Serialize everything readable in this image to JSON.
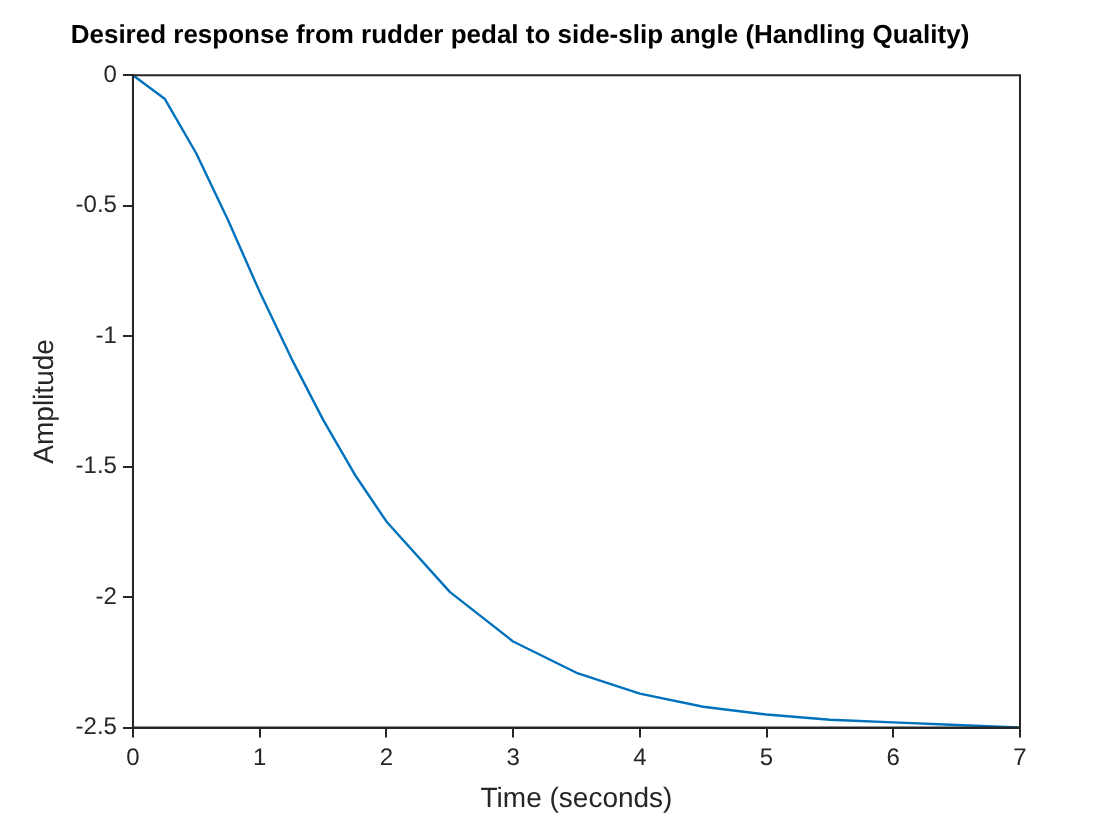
{
  "chart_data": {
    "type": "line",
    "title": "Desired response from rudder pedal to side-slip angle (Handling Quality)",
    "xlabel": "Time (seconds)",
    "ylabel": "Amplitude",
    "x": [
      0,
      0.25,
      0.5,
      0.75,
      1,
      1.25,
      1.5,
      1.75,
      2,
      2.5,
      3,
      3.5,
      4,
      4.5,
      5,
      5.5,
      6,
      6.5,
      7
    ],
    "series": [
      {
        "color": "#0072bd",
        "values": [
          0,
          -0.09,
          -0.3,
          -0.555,
          -0.83,
          -1.085,
          -1.32,
          -1.53,
          -1.71,
          -1.98,
          -2.17,
          -2.29,
          -2.37,
          -2.42,
          -2.45,
          -2.47,
          -2.48,
          -2.49,
          -2.5
        ]
      }
    ],
    "xlim": [
      0,
      7
    ],
    "xticks": [
      0,
      1,
      2,
      3,
      4,
      5,
      6,
      7
    ],
    "ylim": [
      -2.5,
      0
    ],
    "yticks": [
      -2.5,
      -2,
      -1.5,
      -1,
      -0.5,
      0
    ],
    "marker": "none",
    "line_style": "solid",
    "legend": false
  }
}
